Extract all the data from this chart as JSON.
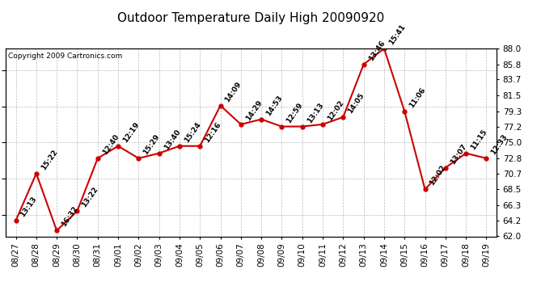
{
  "title": "Outdoor Temperature Daily High 20090920",
  "copyright": "Copyright 2009 Cartronics.com",
  "background_color": "#ffffff",
  "plot_bg_color": "#ffffff",
  "line_color": "#cc0000",
  "marker_color": "#cc0000",
  "grid_color": "#bbbbbb",
  "text_color": "#000000",
  "dates": [
    "08/27",
    "08/28",
    "08/29",
    "08/30",
    "08/31",
    "09/01",
    "09/02",
    "09/03",
    "09/04",
    "09/05",
    "09/06",
    "09/07",
    "09/08",
    "09/09",
    "09/10",
    "09/11",
    "09/12",
    "09/13",
    "09/14",
    "09/15",
    "09/16",
    "09/17",
    "09/18",
    "09/19"
  ],
  "values": [
    64.2,
    70.7,
    62.8,
    65.5,
    72.8,
    74.5,
    72.8,
    73.5,
    74.5,
    74.5,
    80.1,
    77.5,
    78.2,
    77.2,
    77.2,
    77.5,
    78.5,
    85.8,
    88.0,
    79.3,
    68.5,
    71.5,
    73.5,
    72.8
  ],
  "labels": [
    "13:13",
    "15:22",
    "16:32",
    "13:22",
    "12:40",
    "12:19",
    "15:29",
    "13:40",
    "15:24",
    "12:16",
    "14:09",
    "14:29",
    "14:53",
    "12:59",
    "13:13",
    "12:02",
    "14:05",
    "13:46",
    "15:41",
    "11:06",
    "12:02",
    "13:07",
    "11:15",
    "12:33"
  ],
  "ylim": [
    62.0,
    88.0
  ],
  "yticks_right": [
    62.0,
    64.2,
    66.3,
    68.5,
    70.7,
    72.8,
    75.0,
    77.2,
    79.3,
    81.5,
    83.7,
    85.8,
    88.0
  ],
  "label_fontsize": 6.5,
  "title_fontsize": 11,
  "copyright_fontsize": 6.5,
  "tick_fontsize": 7.5
}
